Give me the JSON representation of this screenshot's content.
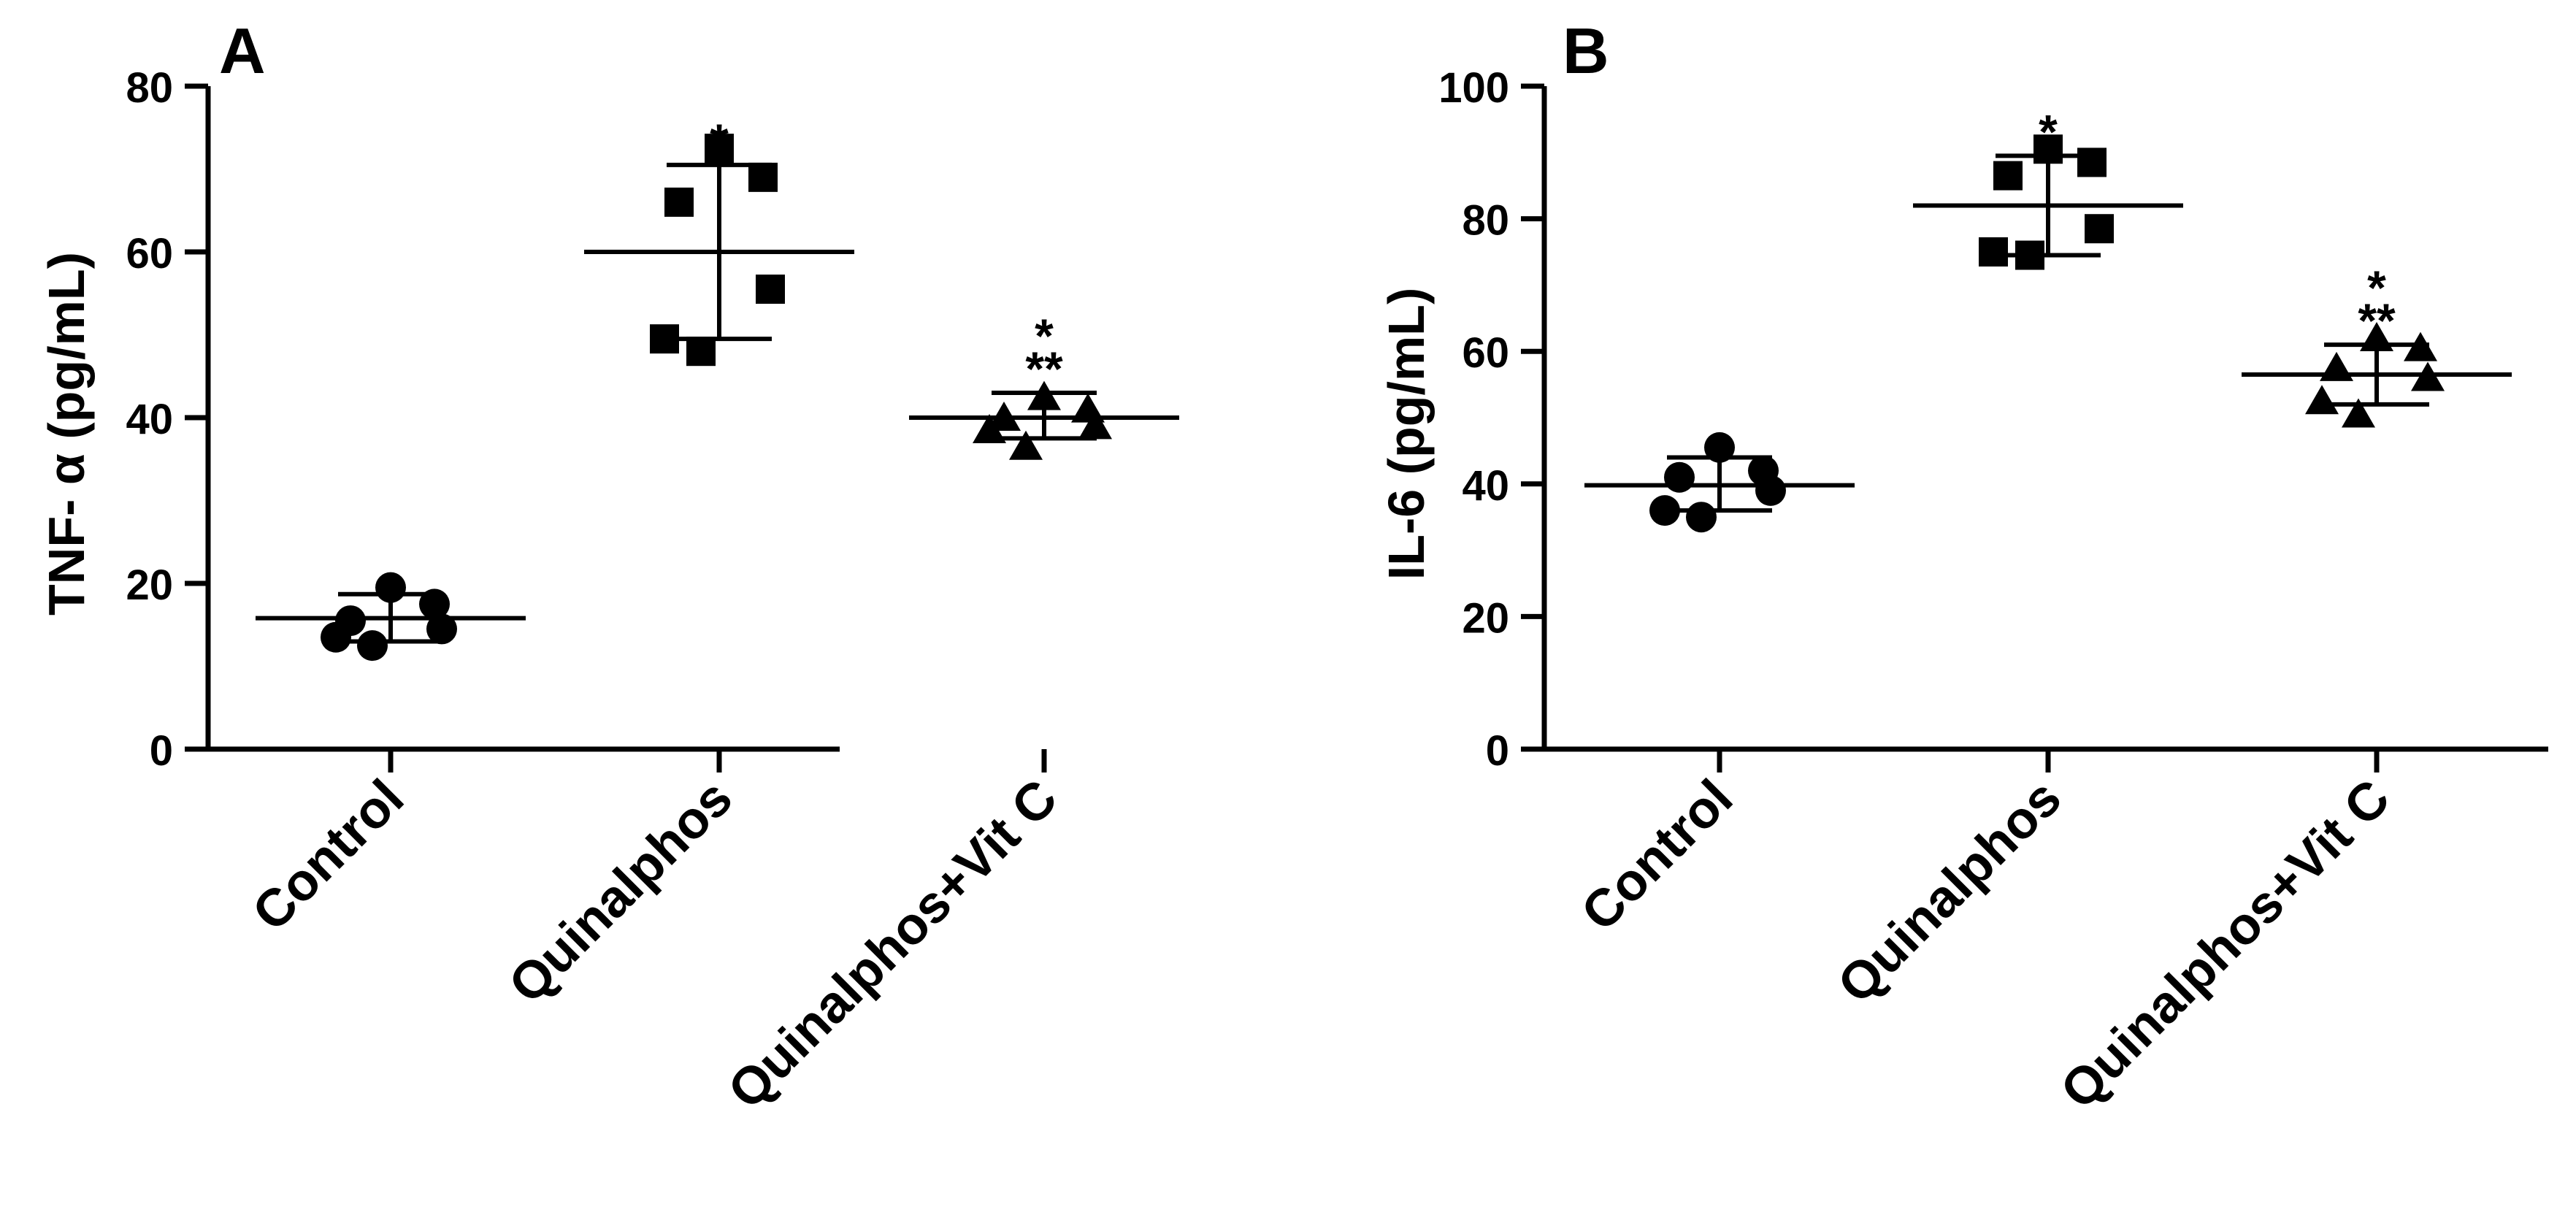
{
  "chart_data": [
    {
      "panel_label": "A",
      "type": "scatter",
      "title": "",
      "ylabel": "TNF- α (pg/mL)",
      "xlabel": "",
      "ylim": [
        0,
        80
      ],
      "yticks": [
        0,
        20,
        40,
        60,
        80
      ],
      "categories": [
        "Control",
        "Quinalphos",
        "Quinalphos+Vit C"
      ],
      "series": [
        {
          "name": "Control",
          "marker": "circle",
          "values": [
            19.5,
            17.5,
            15.5,
            14.5,
            13.5,
            12.5
          ],
          "mean": 15.8,
          "sd_upper": 18.7,
          "sd_lower": 13.0,
          "significance": []
        },
        {
          "name": "Quinalphos",
          "marker": "square",
          "values": [
            72.5,
            69.0,
            66.0,
            55.5,
            49.5,
            48.0
          ],
          "mean": 60.0,
          "sd_upper": 70.5,
          "sd_lower": 49.5,
          "significance": [
            "*"
          ]
        },
        {
          "name": "Quinalphos+Vit C",
          "marker": "triangle",
          "values": [
            42.5,
            41.0,
            40.0,
            39.0,
            38.5,
            36.5
          ],
          "mean": 40.0,
          "sd_upper": 43.0,
          "sd_lower": 37.5,
          "significance": [
            "*",
            "**"
          ]
        }
      ]
    },
    {
      "panel_label": "B",
      "type": "scatter",
      "title": "",
      "ylabel": "IL-6 (pg/mL)",
      "xlabel": "",
      "ylim": [
        0,
        100
      ],
      "yticks": [
        0,
        20,
        40,
        60,
        80,
        100
      ],
      "categories": [
        "Control",
        "Quinalphos",
        "Quinalphos+Vit C"
      ],
      "series": [
        {
          "name": "Control",
          "marker": "circle",
          "values": [
            45.5,
            42.0,
            41.0,
            39.0,
            36.0,
            35.0
          ],
          "mean": 39.8,
          "sd_upper": 44.0,
          "sd_lower": 36.0,
          "significance": []
        },
        {
          "name": "Quinalphos",
          "marker": "square",
          "values": [
            90.5,
            88.5,
            86.5,
            78.5,
            75.0,
            74.5
          ],
          "mean": 82.0,
          "sd_upper": 89.5,
          "sd_lower": 74.5,
          "significance": [
            "*"
          ]
        },
        {
          "name": "Quinalphos+Vit C",
          "marker": "triangle",
          "values": [
            62.0,
            60.5,
            57.5,
            56.0,
            52.5,
            50.5
          ],
          "mean": 56.5,
          "sd_upper": 61.0,
          "sd_lower": 52.0,
          "significance": [
            "*",
            "**"
          ]
        }
      ]
    }
  ]
}
